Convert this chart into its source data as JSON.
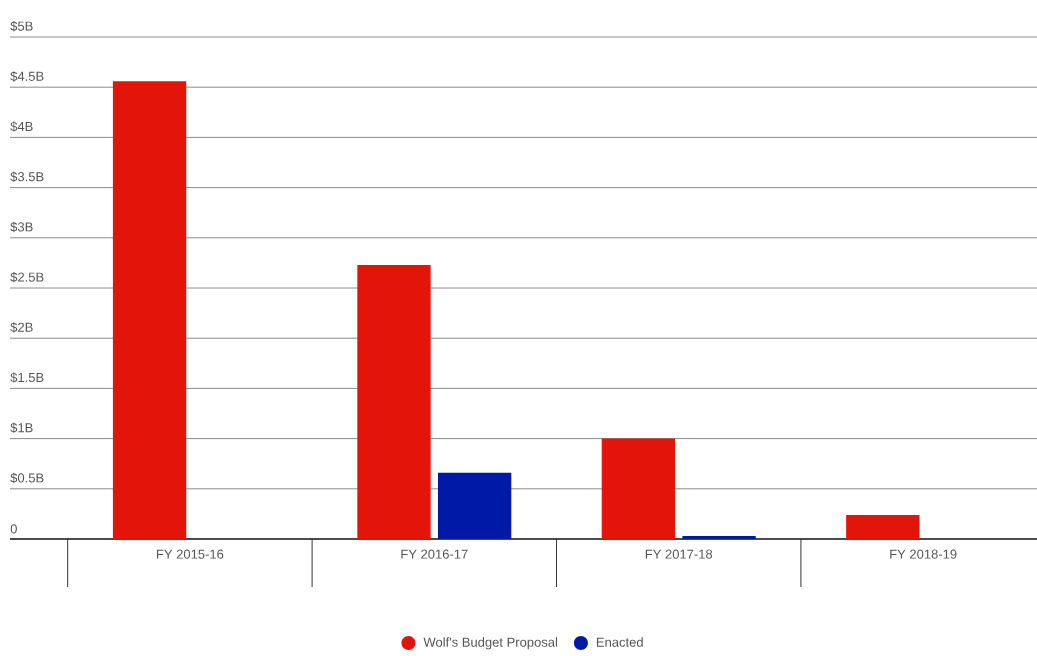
{
  "chart_data": {
    "type": "bar",
    "categories": [
      "FY 2015-16",
      "FY 2016-17",
      "FY 2017-18",
      "FY 2018-19"
    ],
    "series": [
      {
        "name": "Wolf's Budget Proposal",
        "color": "#e3140a",
        "values": [
          4.56,
          2.73,
          1.0,
          0.24
        ]
      },
      {
        "name": "Enacted",
        "color": "#001aa8",
        "values": [
          null,
          0.66,
          0.03,
          null
        ]
      }
    ],
    "ylim": [
      0,
      5
    ],
    "yticks": [
      0,
      {
        "value": 0.5,
        "label": "$0.5B"
      },
      {
        "value": 1,
        "label": "$1B"
      },
      {
        "value": 1.5,
        "label": "$1.5B"
      },
      {
        "value": 2,
        "label": "$2B"
      },
      {
        "value": 2.5,
        "label": "$2.5B"
      },
      {
        "value": 3,
        "label": "$3B"
      },
      {
        "value": 3.5,
        "label": "$3.5B"
      },
      {
        "value": 4,
        "label": "$4B"
      },
      {
        "value": 4.5,
        "label": "$4.5B"
      },
      {
        "value": 5,
        "label": "$5B"
      }
    ],
    "grid": "y",
    "legend": "bottom"
  }
}
